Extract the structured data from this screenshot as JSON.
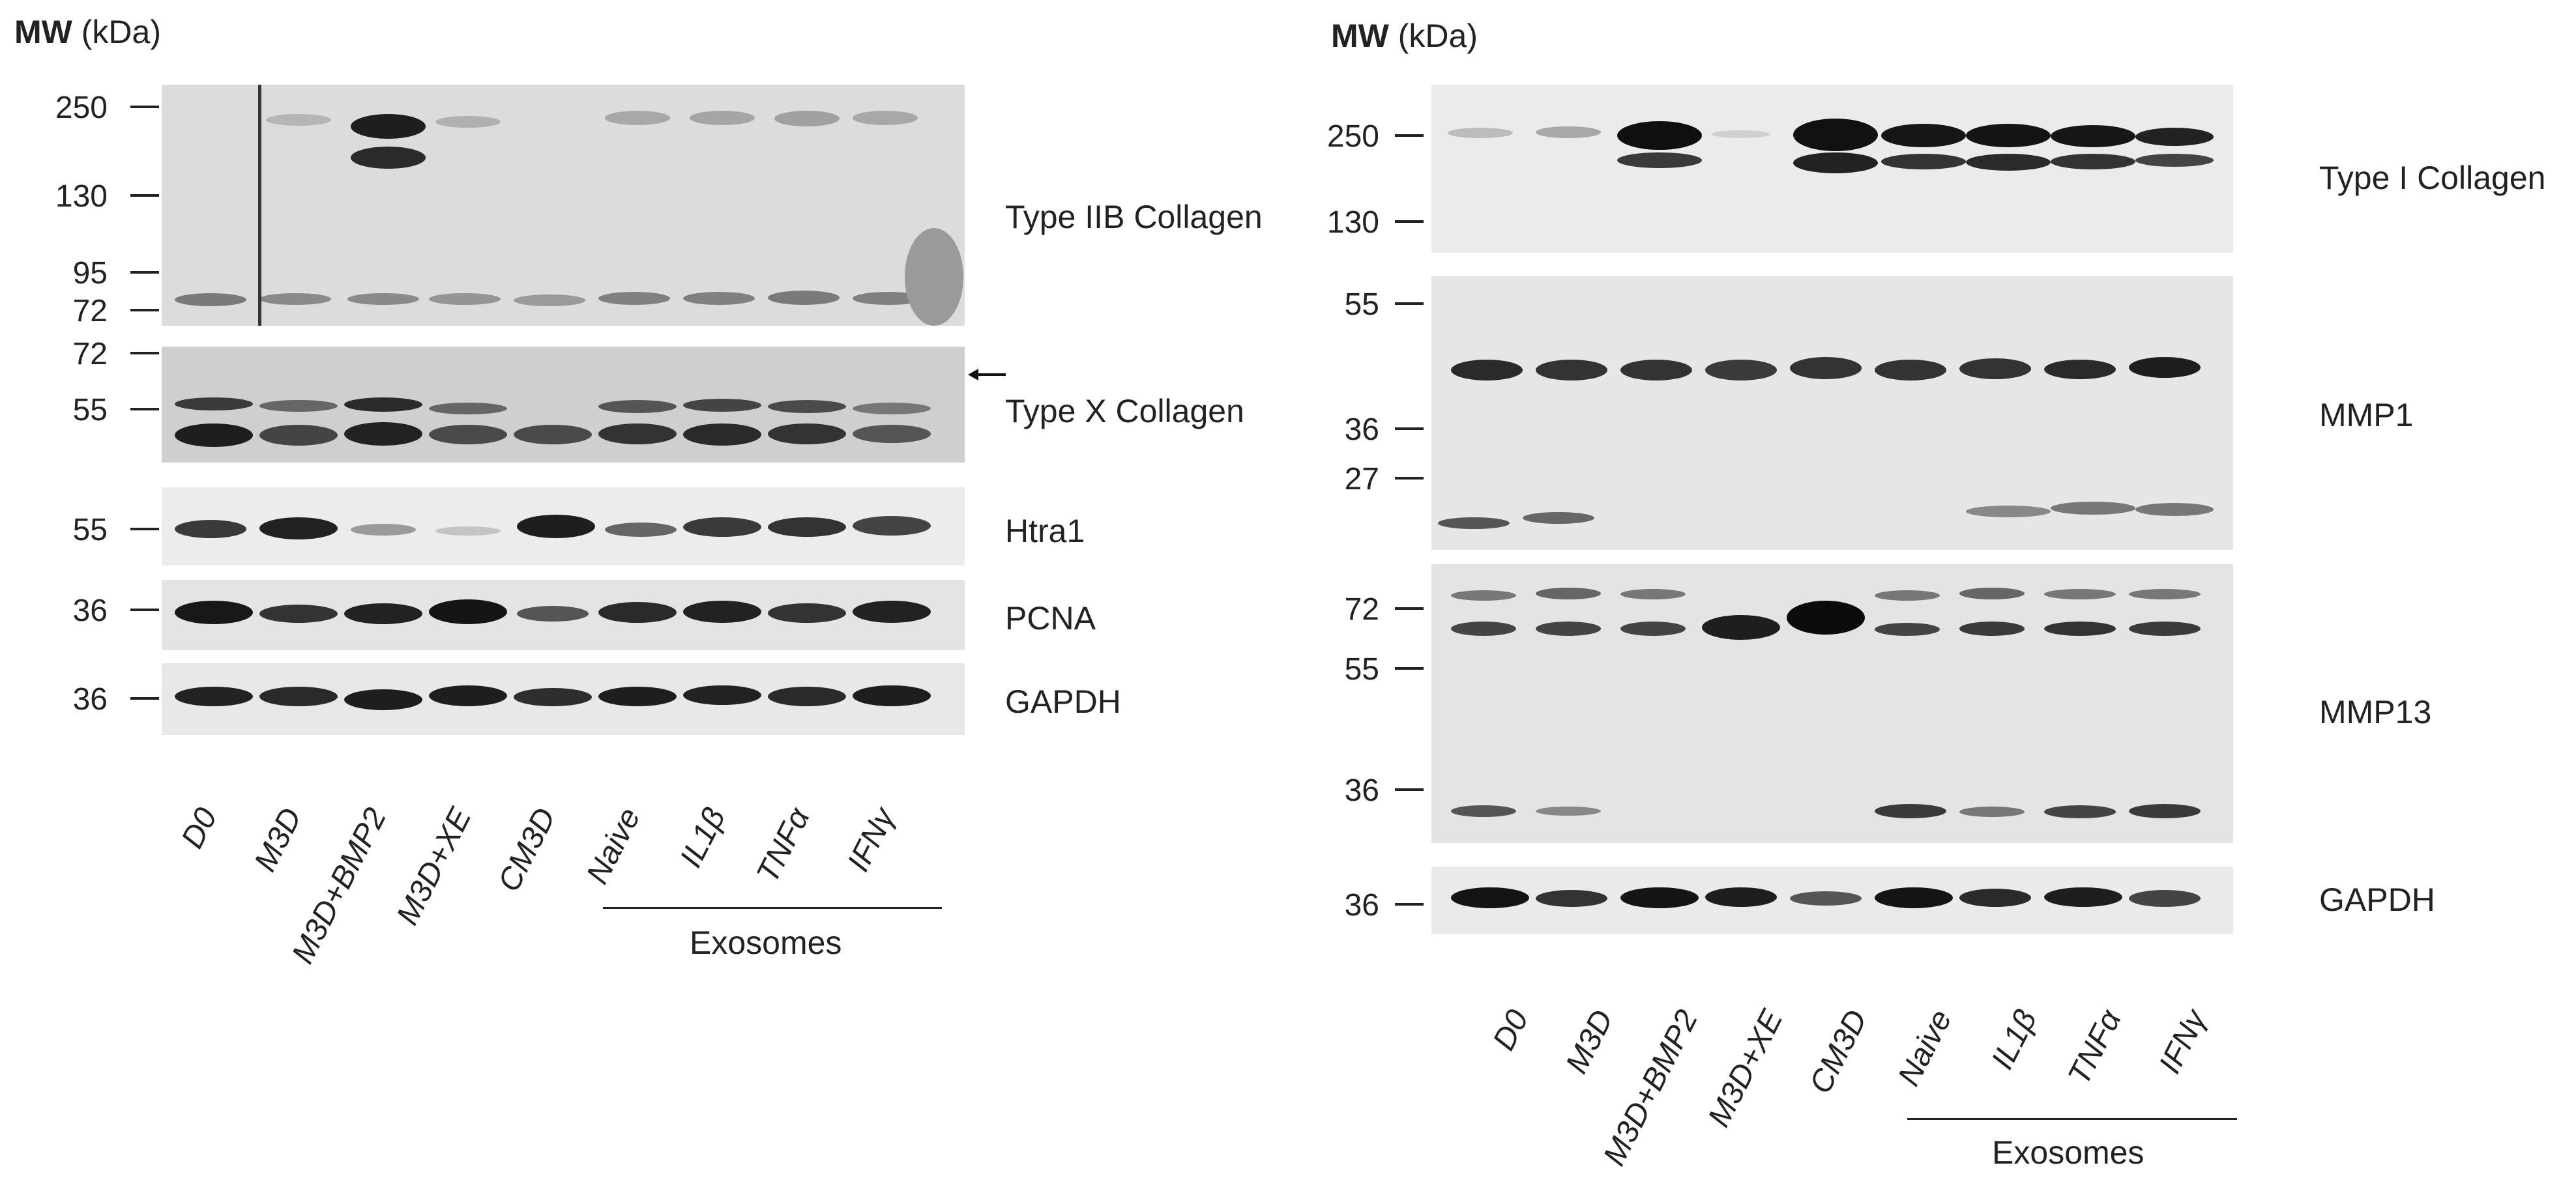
{
  "left_panel": {
    "mw_title": {
      "bold": "MW",
      "unit": "(kDa)"
    },
    "lanes": [
      "D0",
      "M3D",
      "M3D+BMP2",
      "M3D+XE",
      "CM3D",
      "Naive",
      "IL1β",
      "TNFα",
      "IFNγ"
    ],
    "exosome_group_label": "Exosomes",
    "blots": [
      {
        "name": "Type IIB Collagen",
        "mw_markers": [
          "250",
          "130",
          "95",
          "72"
        ]
      },
      {
        "name": "Type X Collagen",
        "mw_markers": [
          "72",
          "55"
        ]
      },
      {
        "name": "Htra1",
        "mw_markers": [
          "55"
        ]
      },
      {
        "name": "PCNA",
        "mw_markers": [
          "36"
        ]
      },
      {
        "name": "GAPDH",
        "mw_markers": [
          "36"
        ]
      }
    ]
  },
  "right_panel": {
    "mw_title": {
      "bold": "MW",
      "unit": "(kDa)"
    },
    "lanes": [
      "D0",
      "M3D",
      "M3D+BMP2",
      "M3D+XE",
      "CM3D",
      "Naive",
      "IL1β",
      "TNFα",
      "IFNγ"
    ],
    "exosome_group_label": "Exosomes",
    "blots": [
      {
        "name": "Type I Collagen",
        "mw_markers": [
          "250",
          "130"
        ]
      },
      {
        "name": "MMP1",
        "mw_markers": [
          "55",
          "36",
          "27"
        ]
      },
      {
        "name": "MMP13",
        "mw_markers": [
          "72",
          "55",
          "36"
        ]
      },
      {
        "name": "GAPDH",
        "mw_markers": [
          "36"
        ]
      }
    ]
  }
}
